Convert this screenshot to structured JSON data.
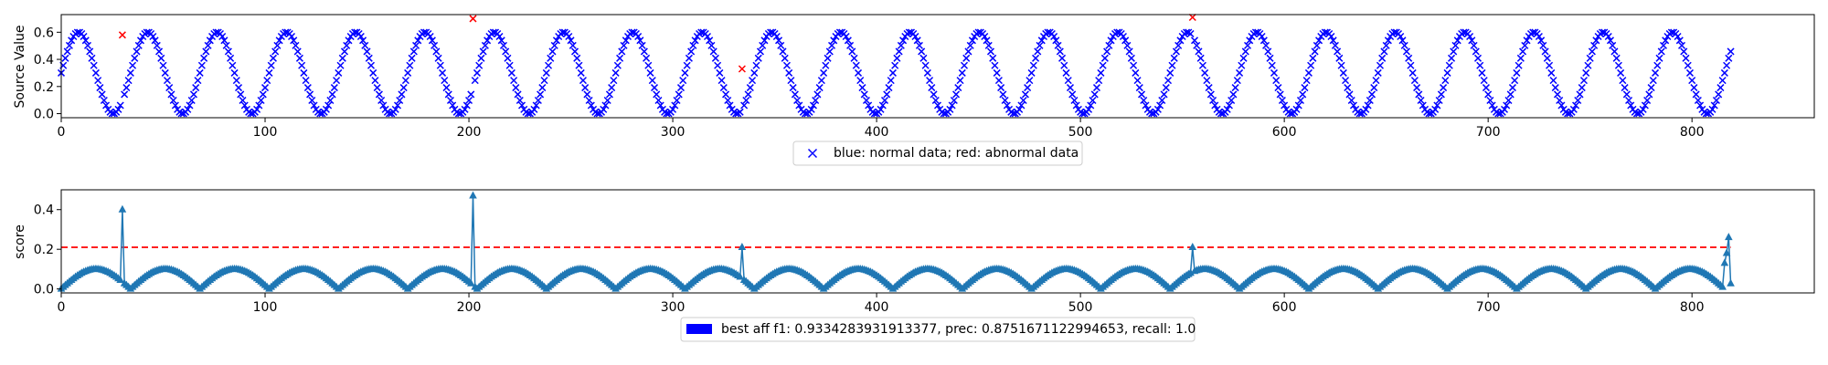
{
  "chart_data": [
    {
      "type": "scatter",
      "ylabel": "Source Value",
      "xlim": [
        0,
        860
      ],
      "ylim": [
        -0.03,
        0.73
      ],
      "xticks": [
        0,
        100,
        200,
        300,
        400,
        500,
        600,
        700,
        800
      ],
      "yticks": [
        0.0,
        0.2,
        0.4,
        0.6
      ],
      "xtick_labels": [
        "0",
        "100",
        "200",
        "300",
        "400",
        "500",
        "600",
        "700",
        "800"
      ],
      "ytick_labels": [
        "0.0",
        "0.2",
        "0.4",
        "0.6"
      ],
      "signal": {
        "form": "sine",
        "offset": 0.3,
        "amplitude": 0.3,
        "period": 34,
        "x_start": 0,
        "x_end": 819,
        "points": 820
      },
      "normal_color": "#0000ff",
      "abnormal_color": "#ff0000",
      "abnormal_points": [
        [
          30,
          0.58
        ],
        [
          202,
          0.7
        ],
        [
          334,
          0.33
        ],
        [
          555,
          0.71
        ]
      ],
      "legend": {
        "label": "blue: normal data; red: abnormal data",
        "placement": "lower-center"
      }
    },
    {
      "type": "line",
      "ylabel": "score",
      "xlim": [
        0,
        860
      ],
      "ylim": [
        -0.02,
        0.5
      ],
      "xticks": [
        0,
        100,
        200,
        300,
        400,
        500,
        600,
        700,
        800
      ],
      "yticks": [
        0.0,
        0.2,
        0.4
      ],
      "xtick_labels": [
        "0",
        "100",
        "200",
        "300",
        "400",
        "500",
        "600",
        "700",
        "800"
      ],
      "ytick_labels": [
        "0.0",
        "0.2",
        "0.4"
      ],
      "score_color": "#1f77b4",
      "baseline": {
        "form": "abs-sine",
        "amplitude": 0.1,
        "period": 34,
        "points": 820
      },
      "spikes": [
        [
          30,
          0.4
        ],
        [
          202,
          0.47
        ],
        [
          334,
          0.21
        ],
        [
          555,
          0.21
        ],
        [
          816,
          0.13
        ],
        [
          817,
          0.18
        ],
        [
          818,
          0.26
        ]
      ],
      "threshold": 0.21,
      "threshold_color": "#ff0000",
      "legend": {
        "label": "best aff f1: 0.9334283931913377, prec: 0.8751671122994653, recall: 1.0",
        "patch_color": "#0000ff",
        "placement": "lower-center"
      }
    }
  ]
}
